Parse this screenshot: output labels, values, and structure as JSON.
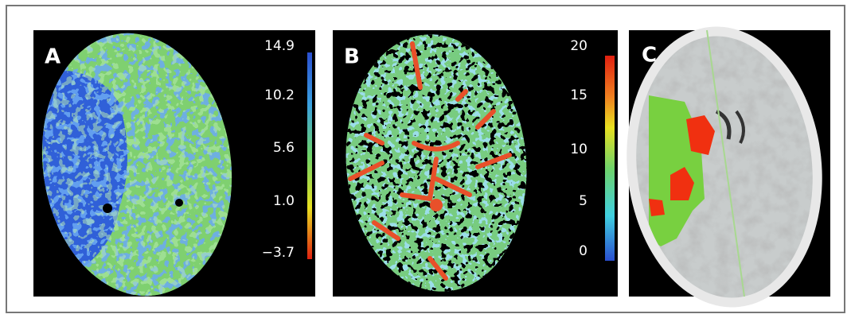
{
  "panels": [
    {
      "label": "A",
      "colorbar_ticks": [
        "14.9",
        "10.2",
        "5.6",
        "1.0",
        "−3.7"
      ]
    },
    {
      "label": "B",
      "colorbar_ticks": [
        "20",
        "15",
        "10",
        "5",
        "0"
      ]
    },
    {
      "label": "C"
    }
  ]
}
